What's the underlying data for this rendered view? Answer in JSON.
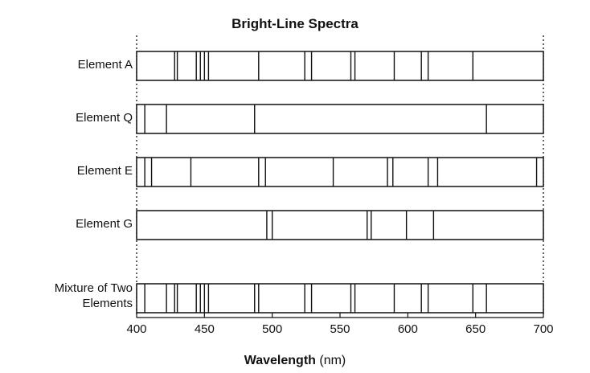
{
  "title": "Bright-Line Spectra",
  "axis": {
    "min": 400,
    "max": 700,
    "ticks": [
      400,
      450,
      500,
      550,
      600,
      650,
      700
    ],
    "label_bold": "Wavelength",
    "label_unit": "(nm)"
  },
  "spectra": [
    {
      "label": "Element A",
      "lines": [
        428,
        430,
        444,
        447,
        450,
        453,
        490,
        524,
        529,
        558,
        561,
        590,
        610,
        615,
        648
      ]
    },
    {
      "label": "Element Q",
      "lines": [
        406,
        422,
        487,
        658
      ]
    },
    {
      "label": "Element E",
      "lines": [
        406,
        411,
        440,
        490,
        495,
        545,
        585,
        589,
        615,
        622,
        695
      ]
    },
    {
      "label": "Element G",
      "lines": [
        496,
        500,
        570,
        573,
        599,
        619
      ]
    },
    {
      "label_lines": [
        "Mixture of Two",
        "Elements"
      ],
      "lines": [
        406,
        422,
        428,
        430,
        444,
        447,
        450,
        453,
        487,
        490,
        524,
        529,
        558,
        561,
        590,
        610,
        615,
        648,
        658
      ]
    }
  ]
}
